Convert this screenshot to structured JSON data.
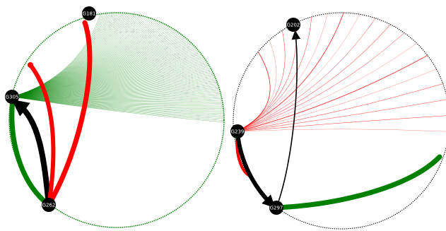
{
  "colors": {
    "background": "#ffffff",
    "node_fill": "#000000",
    "node_label": "#ffffff",
    "green": "#008000",
    "red": "#ff0000",
    "black": "#000000"
  },
  "graphs": [
    {
      "name": "left-circle-graph",
      "rim_color": "#008000",
      "nodes": [
        {
          "id": "G181",
          "label": "G181"
        },
        {
          "id": "G305",
          "label": "G305"
        },
        {
          "id": "G262",
          "label": "G262"
        }
      ],
      "edges": [
        {
          "from": "G262",
          "to": "G181",
          "color": "#ff0000",
          "weight": "heavy"
        },
        {
          "from": "G262",
          "to": "red-end-left",
          "color": "#ff0000",
          "weight": "heavy"
        },
        {
          "from": "G262",
          "to": "G305",
          "color": "#000000",
          "weight": "heavy",
          "arrow": true
        },
        {
          "from": "G305",
          "to": "G262",
          "color": "#008000",
          "weight": "heavy"
        }
      ],
      "fan_out": {
        "from": "G305",
        "color": "#008000",
        "count": 110
      }
    },
    {
      "name": "right-circle-graph",
      "rim_color": "#000000",
      "nodes": [
        {
          "id": "G202",
          "label": "G202"
        },
        {
          "id": "G239",
          "label": "G239"
        },
        {
          "id": "G297",
          "label": "G297"
        }
      ],
      "edges": [
        {
          "from": "G297",
          "to": "G202",
          "color": "#000000",
          "weight": "thin",
          "arrow": true
        },
        {
          "from": "G239",
          "to": "G297",
          "color": "#000000",
          "weight": "heavy",
          "arrow": true
        },
        {
          "from": "G239",
          "to": "G297",
          "color": "#ff0000",
          "weight": "medium"
        },
        {
          "from": "G297",
          "to": "green-end-right",
          "color": "#008000",
          "weight": "heavy"
        }
      ],
      "fan_out": {
        "from": "G239",
        "color": "#ff0000",
        "count": 18
      }
    }
  ]
}
